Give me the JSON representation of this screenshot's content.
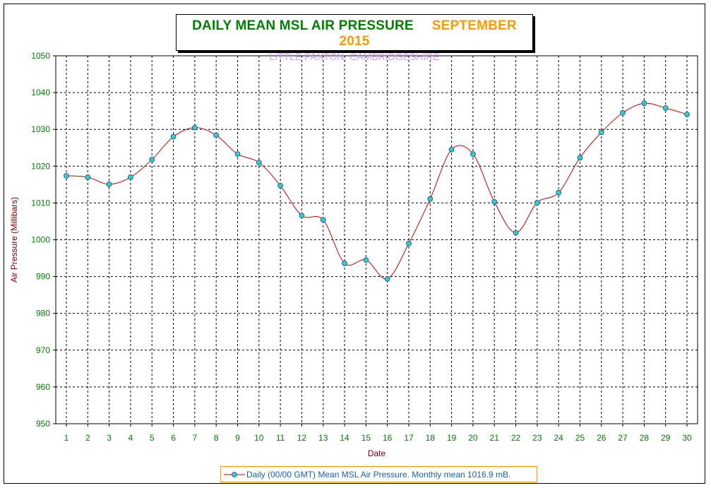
{
  "title": {
    "main": "DAILY MEAN MSL AIR PRESSURE",
    "date": "SEPTEMBER 2015",
    "subtitle": "LITTLE PAXTON, CAMBRIDGESHIRE"
  },
  "legend": {
    "label": "Daily (00/00 GMT) Mean MSL Air Pressure. Monthly mean 1016.9 mB."
  },
  "colors": {
    "line": "#cc0000",
    "marker_fill": "#33cccc",
    "grid": "#000000",
    "tick_text": "#008000",
    "axis_title": "#800000"
  },
  "chart_data": {
    "type": "line",
    "title": "DAILY MEAN MSL AIR PRESSURE SEPTEMBER 2015",
    "subtitle": "LITTLE PAXTON, CAMBRIDGESHIRE",
    "xlabel": "Date",
    "ylabel": "Air Pressure (Millibars)",
    "ylim": [
      950,
      1050
    ],
    "yticks": [
      950,
      960,
      970,
      980,
      990,
      1000,
      1010,
      1020,
      1030,
      1040,
      1050
    ],
    "x": [
      1,
      2,
      3,
      4,
      5,
      6,
      7,
      8,
      9,
      10,
      11,
      12,
      13,
      14,
      15,
      16,
      17,
      18,
      19,
      20,
      21,
      22,
      23,
      24,
      25,
      26,
      27,
      28,
      29,
      30
    ],
    "grid": true,
    "legend_position": "bottom",
    "series": [
      {
        "name": "Daily (00/00 GMT) Mean MSL Air Pressure. Monthly mean 1016.9 mB.",
        "values": [
          1017.4,
          1017.0,
          1015.1,
          1017.0,
          1021.8,
          1028.0,
          1030.5,
          1028.4,
          1023.3,
          1021.0,
          1014.7,
          1006.6,
          1005.4,
          993.6,
          994.5,
          989.4,
          999.0,
          1011.1,
          1024.5,
          1023.3,
          1010.3,
          1001.9,
          1010.1,
          1012.8,
          1022.3,
          1029.2,
          1034.5,
          1037.1,
          1035.8,
          1034.1
        ]
      }
    ]
  }
}
